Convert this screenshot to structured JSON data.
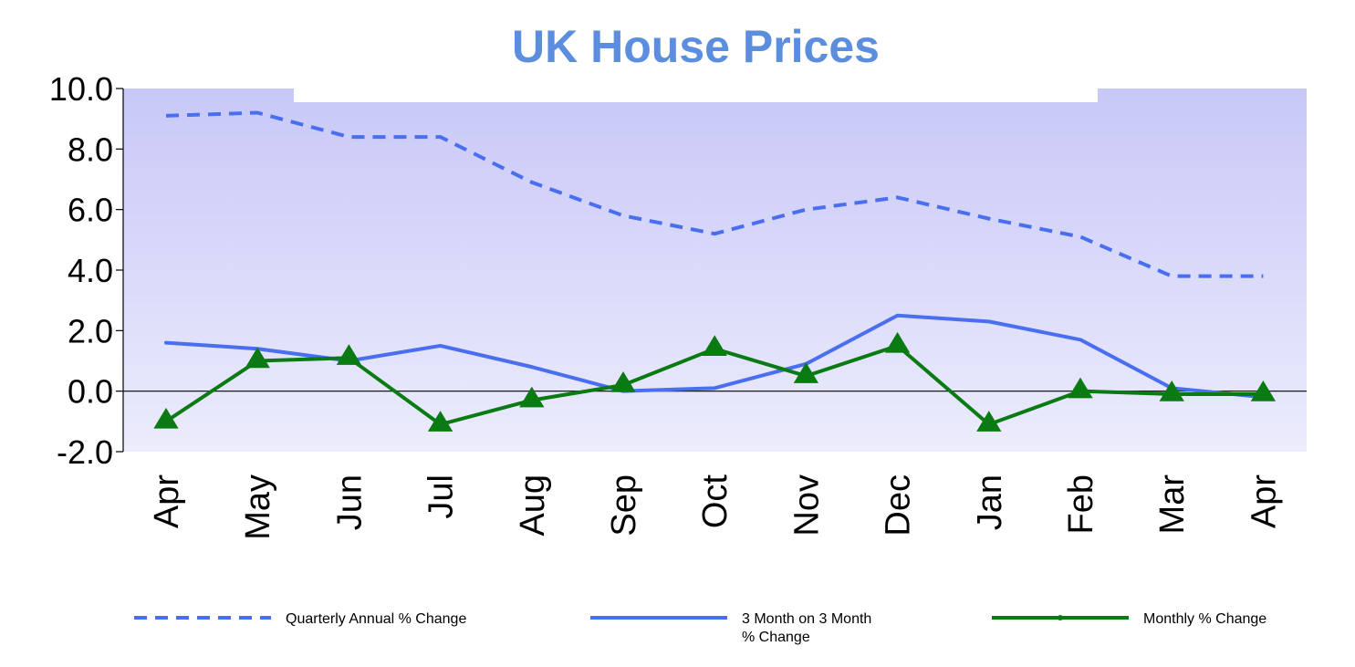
{
  "chart_data": {
    "type": "line",
    "title": "UK House Prices",
    "xlabel": "",
    "ylabel": "",
    "categories": [
      "Apr",
      "May",
      "Jun",
      "Jul",
      "Aug",
      "Sep",
      "Oct",
      "Nov",
      "Dec",
      "Jan",
      "Feb",
      "Mar",
      "Apr"
    ],
    "ylim": [
      -2.0,
      10.0
    ],
    "yticks": [
      "10.0",
      "8.0",
      "6.0",
      "4.0",
      "2.0",
      "0.0",
      "-2.0"
    ],
    "series": [
      {
        "name": "Quarterly Annual % Change",
        "style": "dashed",
        "color": "#4a6ef0",
        "values": [
          9.1,
          9.2,
          8.4,
          8.4,
          6.9,
          5.8,
          5.2,
          6.0,
          6.4,
          5.7,
          5.1,
          3.8,
          3.8
        ]
      },
      {
        "name": "3 Month on 3 Month % Change",
        "name_lines": [
          "3 Month on 3 Month",
          "% Change"
        ],
        "style": "solid",
        "color": "#4a6ef0",
        "values": [
          1.6,
          1.4,
          1.0,
          1.5,
          0.8,
          0.0,
          0.1,
          0.9,
          2.5,
          2.3,
          1.7,
          0.1,
          -0.2
        ]
      },
      {
        "name": "Monthly % Change",
        "style": "solid-triangle",
        "color": "#0a7a12",
        "values": [
          -1.0,
          1.0,
          1.1,
          -1.1,
          -0.3,
          0.2,
          1.4,
          0.5,
          1.5,
          -1.1,
          0.0,
          -0.1,
          -0.1
        ]
      }
    ],
    "colors": {
      "title": "#5b8ede",
      "plot_bg_top": "#c8c8f8",
      "plot_bg_bottom": "#ececfc",
      "zero_line": "#000000"
    },
    "legend_position": "bottom"
  }
}
